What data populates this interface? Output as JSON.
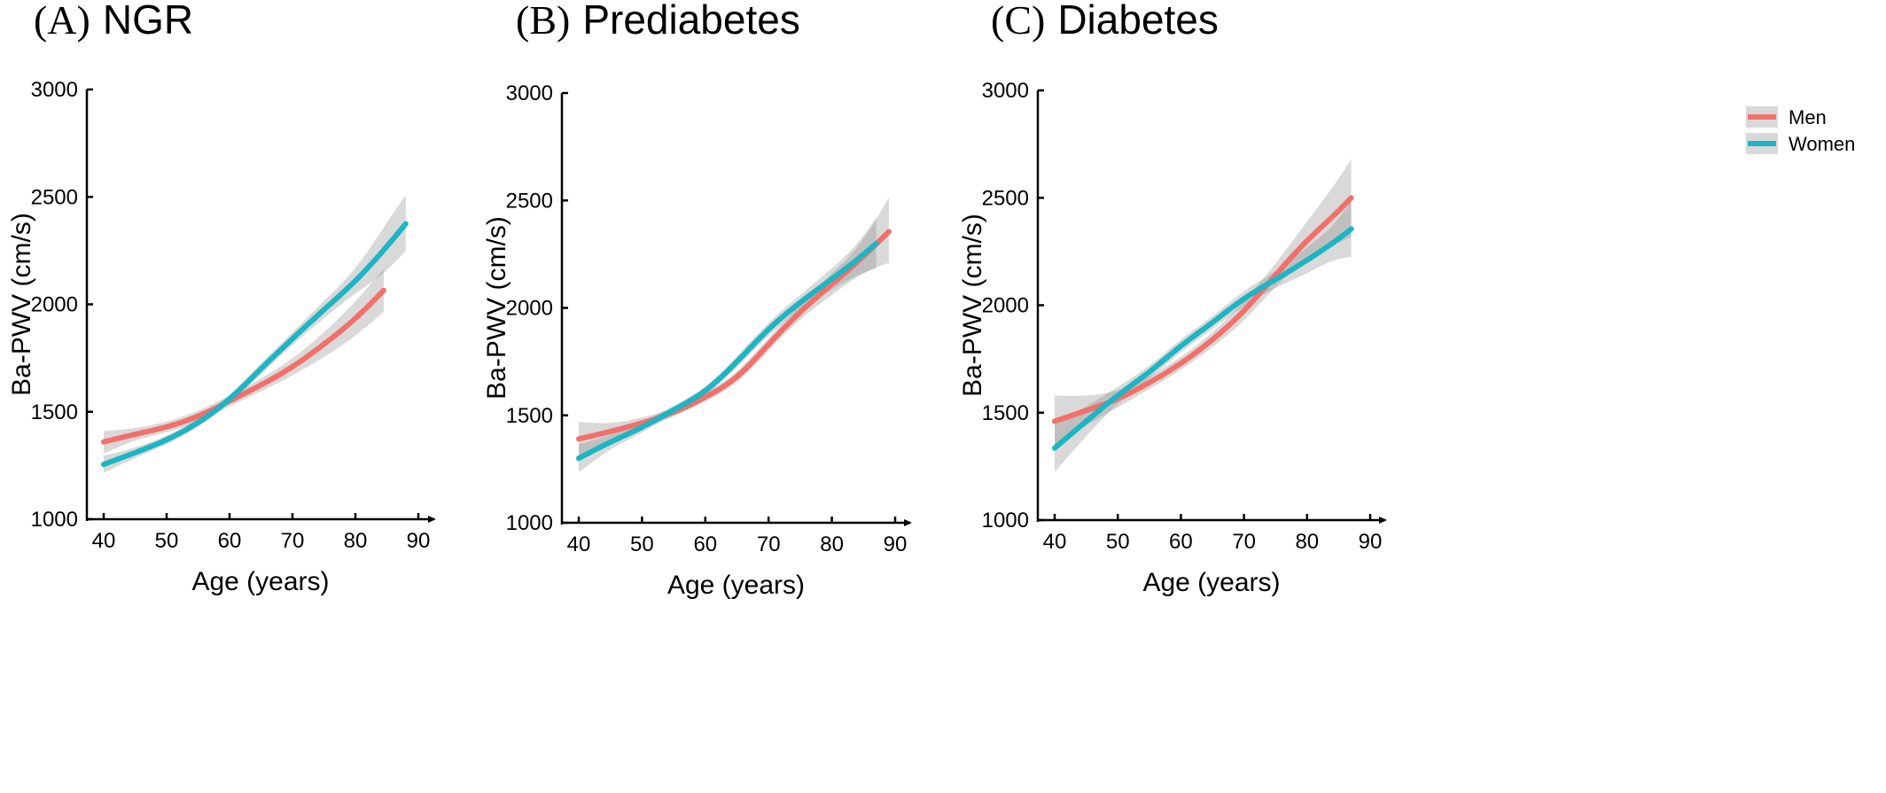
{
  "colors": {
    "men": "#F2706A",
    "women": "#1DB5C4",
    "ci_band": "#8C8C8C",
    "axis": "#000000"
  },
  "legend": {
    "placement": "top-right",
    "panel": 2,
    "items": [
      "Men",
      "Women"
    ]
  },
  "chart_data": [
    {
      "type": "line",
      "panel_letter": "(A)",
      "title": "NGR",
      "xlabel": "Age (years)",
      "ylabel": "Ba-PWV (cm/s)",
      "xlim": [
        38,
        92
      ],
      "ylim": [
        1000,
        3000
      ],
      "xticks": [
        40,
        50,
        60,
        70,
        80,
        90
      ],
      "yticks": [
        1000,
        1500,
        2000,
        2500,
        3000
      ],
      "grid": false,
      "series": [
        {
          "name": "Men",
          "x": [
            40,
            45,
            50,
            55,
            60,
            65,
            70,
            75,
            80,
            84.5
          ],
          "y": [
            1360,
            1395,
            1430,
            1480,
            1550,
            1625,
            1710,
            1815,
            1935,
            2065
          ],
          "ci_lower": [
            1305,
            1365,
            1405,
            1455,
            1525,
            1595,
            1670,
            1755,
            1855,
            1965
          ],
          "ci_upper": [
            1410,
            1425,
            1455,
            1505,
            1575,
            1655,
            1750,
            1870,
            2015,
            2165
          ]
        },
        {
          "name": "Women",
          "x": [
            40,
            45,
            50,
            55,
            60,
            65,
            70,
            75,
            80,
            85,
            88
          ],
          "y": [
            1255,
            1310,
            1370,
            1450,
            1560,
            1700,
            1840,
            1975,
            2110,
            2270,
            2375
          ],
          "ci_lower": [
            1215,
            1285,
            1350,
            1430,
            1540,
            1675,
            1810,
            1935,
            2050,
            2160,
            2250
          ],
          "ci_upper": [
            1295,
            1335,
            1390,
            1470,
            1580,
            1725,
            1870,
            2015,
            2170,
            2380,
            2510
          ]
        }
      ]
    },
    {
      "type": "line",
      "panel_letter": "(B)",
      "title": "Prediabetes",
      "xlabel": "Age (years)",
      "ylabel": "Ba-PWV (cm/s)",
      "xlim": [
        38,
        92
      ],
      "ylim": [
        1000,
        3000
      ],
      "xticks": [
        40,
        50,
        60,
        70,
        80,
        90
      ],
      "yticks": [
        1000,
        1500,
        2000,
        2500,
        3000
      ],
      "grid": false,
      "series": [
        {
          "name": "Men",
          "x": [
            40,
            45,
            50,
            55,
            60,
            65,
            70,
            75,
            80,
            85,
            89
          ],
          "y": [
            1390,
            1425,
            1465,
            1515,
            1585,
            1680,
            1830,
            1980,
            2110,
            2240,
            2355
          ],
          "ci_lower": [
            1305,
            1385,
            1440,
            1495,
            1565,
            1655,
            1800,
            1945,
            2060,
            2160,
            2210
          ],
          "ci_upper": [
            1470,
            1465,
            1490,
            1535,
            1605,
            1705,
            1860,
            2015,
            2160,
            2320,
            2515
          ]
        },
        {
          "name": "Women",
          "x": [
            40,
            45,
            50,
            55,
            60,
            65,
            70,
            75,
            80,
            84,
            87
          ],
          "y": [
            1300,
            1375,
            1445,
            1525,
            1615,
            1750,
            1900,
            2025,
            2135,
            2225,
            2300
          ],
          "ci_lower": [
            1235,
            1340,
            1420,
            1505,
            1595,
            1725,
            1870,
            1990,
            2085,
            2150,
            2185
          ],
          "ci_upper": [
            1365,
            1410,
            1470,
            1545,
            1635,
            1775,
            1930,
            2060,
            2185,
            2300,
            2420
          ]
        }
      ]
    },
    {
      "type": "line",
      "panel_letter": "(C)",
      "title": "Diabetes",
      "xlabel": "Age (years)",
      "ylabel": "Ba-PWV (cm/s)",
      "xlim": [
        38,
        92
      ],
      "ylim": [
        1000,
        3000
      ],
      "xticks": [
        40,
        50,
        60,
        70,
        80,
        90
      ],
      "yticks": [
        1000,
        1500,
        2000,
        2500,
        3000
      ],
      "grid": false,
      "series": [
        {
          "name": "Men",
          "x": [
            40,
            45,
            50,
            55,
            60,
            65,
            70,
            75,
            80,
            85,
            87
          ],
          "y": [
            1460,
            1510,
            1565,
            1640,
            1730,
            1840,
            1975,
            2140,
            2300,
            2440,
            2500
          ],
          "ci_lower": [
            1340,
            1440,
            1525,
            1610,
            1700,
            1805,
            1930,
            2085,
            2210,
            2290,
            2320
          ],
          "ci_upper": [
            1580,
            1580,
            1605,
            1670,
            1760,
            1875,
            2020,
            2195,
            2390,
            2590,
            2680
          ]
        },
        {
          "name": "Women",
          "x": [
            40,
            45,
            50,
            55,
            60,
            65,
            70,
            75,
            80,
            85,
            87
          ],
          "y": [
            1335,
            1460,
            1580,
            1690,
            1810,
            1920,
            2030,
            2120,
            2210,
            2310,
            2355
          ],
          "ci_lower": [
            1225,
            1390,
            1540,
            1660,
            1780,
            1890,
            1995,
            2080,
            2150,
            2215,
            2225
          ],
          "ci_upper": [
            1445,
            1530,
            1620,
            1720,
            1840,
            1950,
            2065,
            2160,
            2270,
            2405,
            2485
          ]
        }
      ]
    }
  ]
}
